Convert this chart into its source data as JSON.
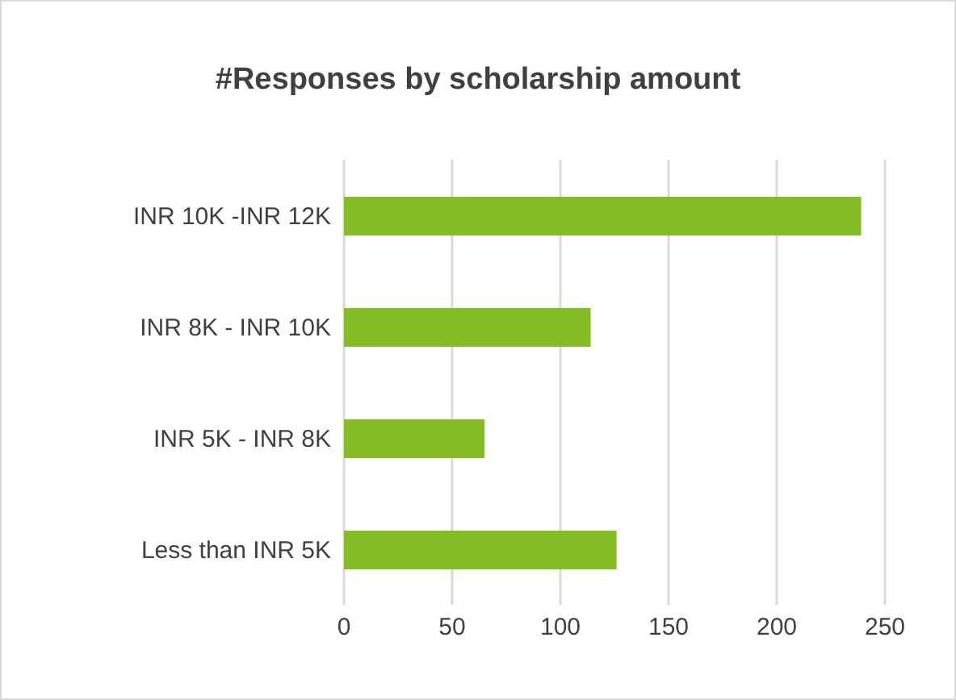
{
  "chart_data": {
    "type": "bar",
    "orientation": "horizontal",
    "title": "#Responses by scholarship amount",
    "categories": [
      "INR 10K -INR 12K",
      "INR 8K - INR 10K",
      "INR 5K - INR 8K",
      "Less than INR 5K"
    ],
    "values": [
      239,
      114,
      65,
      126
    ],
    "color": "#86bc25",
    "xlim": [
      0,
      250
    ],
    "xticks": [
      0,
      50,
      100,
      150,
      200,
      250
    ],
    "grid": "x"
  }
}
